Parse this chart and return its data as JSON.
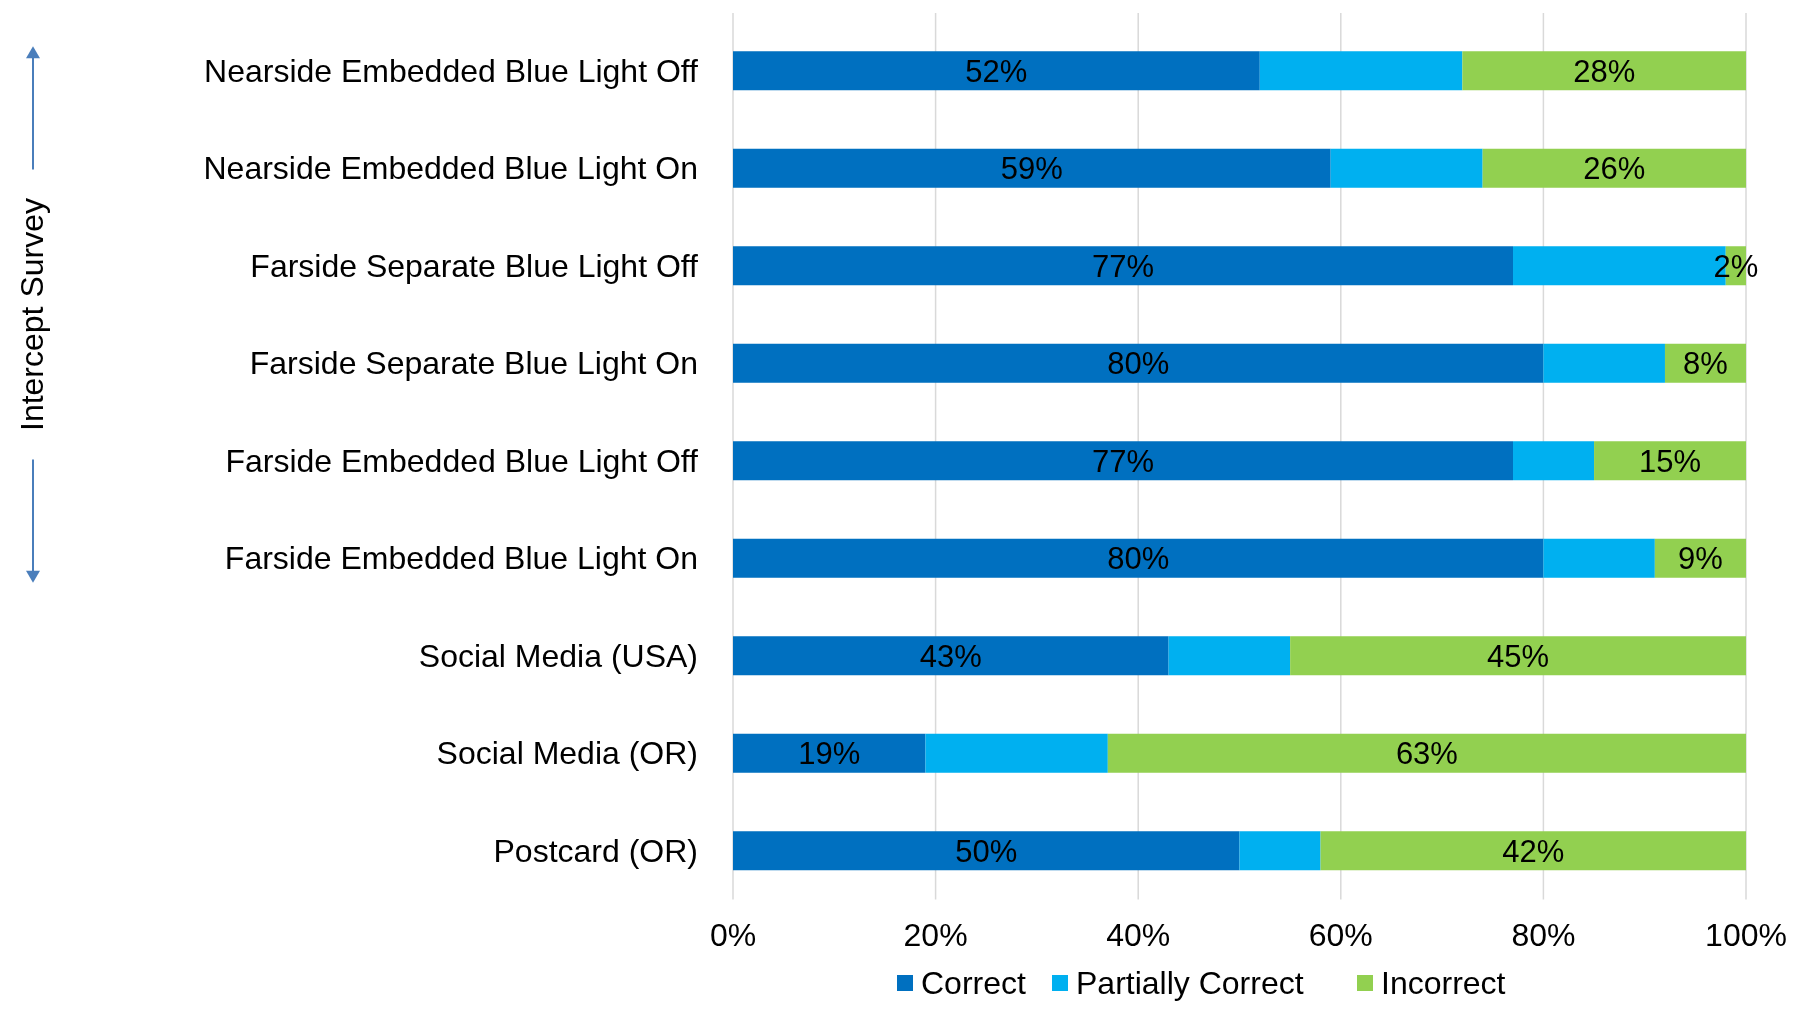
{
  "chart_data": {
    "type": "bar",
    "orientation": "horizontal",
    "stacked": true,
    "categories": [
      "Nearside Embedded Blue Light Off",
      "Nearside Embedded Blue Light On",
      "Farside Separate Blue Light Off",
      "Farside Separate Blue Light On",
      "Farside Embedded Blue Light Off",
      "Farside Embedded Blue Light On",
      "Social Media (USA)",
      "Social Media (OR)",
      "Postcard (OR)"
    ],
    "series": [
      {
        "name": "Correct",
        "color": "#0070c0",
        "values": [
          52,
          59,
          77,
          80,
          77,
          80,
          43,
          19,
          50
        ],
        "value_labels": [
          "52%",
          "59%",
          "77%",
          "80%",
          "77%",
          "80%",
          "43%",
          "19%",
          "50%"
        ]
      },
      {
        "name": "Partially Correct",
        "color": "#00b0f0",
        "values": [
          20,
          15,
          21,
          12,
          8,
          11,
          12,
          18,
          8
        ],
        "value_labels": [
          null,
          null,
          null,
          null,
          null,
          null,
          null,
          null,
          null
        ]
      },
      {
        "name": "Incorrect",
        "color": "#92d050",
        "values": [
          28,
          26,
          2,
          8,
          15,
          9,
          45,
          63,
          42
        ],
        "value_labels": [
          "28%",
          "26%",
          "2%",
          "8%",
          "15%",
          "9%",
          "45%",
          "63%",
          "42%"
        ]
      }
    ],
    "xlim": [
      0,
      100
    ],
    "xticks": [
      {
        "value": 0,
        "label": "0%"
      },
      {
        "value": 20,
        "label": "20%"
      },
      {
        "value": 40,
        "label": "40%"
      },
      {
        "value": 60,
        "label": "60%"
      },
      {
        "value": 80,
        "label": "80%"
      },
      {
        "value": 100,
        "label": "100%"
      }
    ],
    "grid": "x",
    "legend": "bottom",
    "annotations": [
      "Intercept Survey"
    ]
  }
}
